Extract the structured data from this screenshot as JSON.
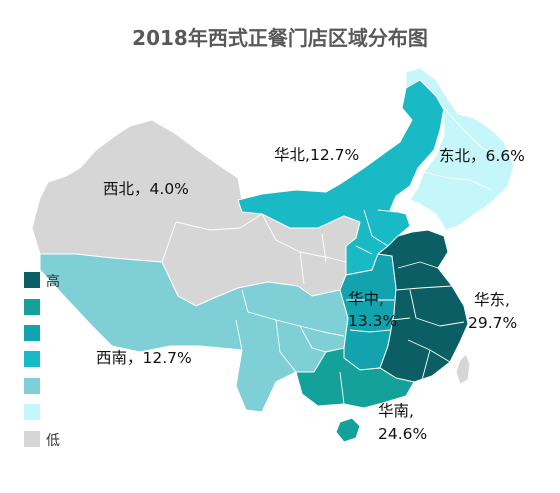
{
  "title": "2018年西式正餐门店区域分布图",
  "colors": {
    "c1": "#0b5e63",
    "c2": "#14a19a",
    "c3": "#12a3ae",
    "c4": "#1ab9c6",
    "c5": "#7fcfd6",
    "c6": "#c5f6fa",
    "c7": "#d6d6d6",
    "border": "#ffffff",
    "label": "#111111"
  },
  "legend": {
    "high_label": "高",
    "low_label": "低"
  },
  "regions": {
    "northwest": {
      "name": "西北",
      "sep": "，",
      "share": "4.0%"
    },
    "north": {
      "name": "华北",
      "sep": ",",
      "share": "12.7%"
    },
    "northeast": {
      "name": "东北",
      "sep": "，",
      "share": "6.6%"
    },
    "southwest": {
      "name": "西南",
      "sep": "，",
      "share": "12.7%"
    },
    "central": {
      "name": "华中",
      "sep": ",",
      "share": "13.3%"
    },
    "east": {
      "name": "华东",
      "sep": ",",
      "share": "29.7%"
    },
    "south": {
      "name": "华南",
      "sep": ",",
      "share": "24.6%"
    }
  }
}
